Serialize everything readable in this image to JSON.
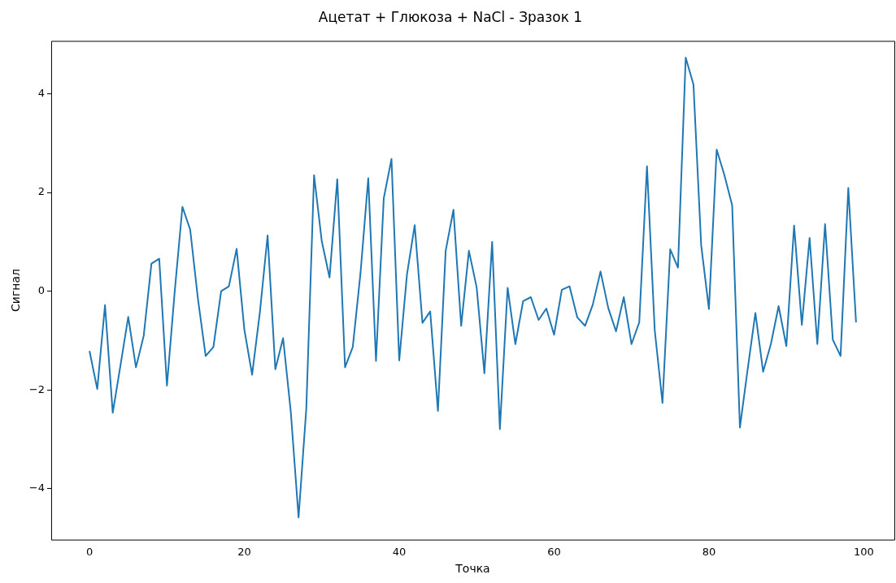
{
  "chart_data": {
    "type": "line",
    "title": "Ацетат + Глюкоза + NaCl - Зразок 1",
    "xlabel": "Точка",
    "ylabel": "Сигнал",
    "x": [
      0,
      1,
      2,
      3,
      4,
      5,
      6,
      7,
      8,
      9,
      10,
      11,
      12,
      13,
      14,
      15,
      16,
      17,
      18,
      19,
      20,
      21,
      22,
      23,
      24,
      25,
      26,
      27,
      28,
      29,
      30,
      31,
      32,
      33,
      34,
      35,
      36,
      37,
      38,
      39,
      40,
      41,
      42,
      43,
      44,
      45,
      46,
      47,
      48,
      49,
      50,
      51,
      52,
      53,
      54,
      55,
      56,
      57,
      58,
      59,
      60,
      61,
      62,
      63,
      64,
      65,
      66,
      67,
      68,
      69,
      70,
      71,
      72,
      73,
      74,
      75,
      76,
      77,
      78,
      79,
      80,
      81,
      82,
      83,
      84,
      85,
      86,
      87,
      88,
      89,
      90,
      91,
      92,
      93,
      94,
      95,
      96,
      97,
      98,
      99
    ],
    "series": [
      {
        "color": "#1f77b4",
        "values": [
          -1.21,
          -1.98,
          -0.28,
          -2.46,
          -1.5,
          -0.52,
          -1.54,
          -0.9,
          0.56,
          0.66,
          -1.91,
          -0.01,
          1.71,
          1.25,
          -0.15,
          -1.31,
          -1.13,
          0.0,
          0.1,
          0.86,
          -0.78,
          -1.69,
          -0.43,
          1.13,
          -1.58,
          -0.95,
          -2.45,
          -4.58,
          -2.37,
          2.35,
          1.01,
          0.28,
          2.27,
          -1.54,
          -1.13,
          0.37,
          2.29,
          -1.41,
          1.88,
          2.68,
          -1.4,
          0.34,
          1.34,
          -0.64,
          -0.41,
          -2.42,
          0.82,
          1.65,
          -0.7,
          0.82,
          0.08,
          -1.66,
          1.0,
          -2.79,
          0.07,
          -1.07,
          -0.2,
          -0.12,
          -0.58,
          -0.35,
          -0.88,
          0.03,
          0.1,
          -0.53,
          -0.7,
          -0.27,
          0.4,
          -0.34,
          -0.81,
          -0.12,
          -1.07,
          -0.63,
          2.53,
          -0.79,
          -2.26,
          0.85,
          0.48,
          4.73,
          4.19,
          0.93,
          -0.36,
          2.87,
          2.35,
          1.74,
          -2.76,
          -1.58,
          -0.44,
          -1.63,
          -1.07,
          -0.3,
          -1.11,
          1.33,
          -0.68,
          1.08,
          -1.07,
          1.36,
          -0.98,
          -1.31,
          2.09,
          -0.63
        ]
      }
    ],
    "xlim": [
      -4.95,
      103.95
    ],
    "xticks": [
      0,
      20,
      40,
      60,
      80,
      100
    ],
    "ylim": [
      -5.03,
      5.07
    ],
    "yticks": [
      {
        "value": -4,
        "label": "−4"
      },
      {
        "value": -2,
        "label": "−2"
      },
      0,
      2,
      4
    ],
    "grid": false,
    "legend": false,
    "marker": "none",
    "line_style": "solid"
  }
}
